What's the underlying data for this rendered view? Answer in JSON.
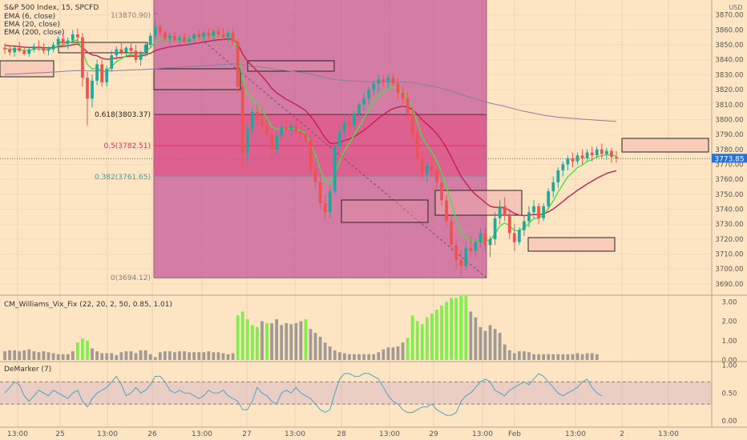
{
  "header": {
    "title": "S&P 500 Index, 15, SPCFD",
    "ema_labels": [
      "EMA (6, close)",
      "EMA (20, close)",
      "EMA (200, close)"
    ]
  },
  "colors": {
    "background": "#fde5c3",
    "fib_zone": "#c2559a",
    "fib_band": "#e64a80",
    "up": "#26a69a",
    "down": "#ef5350",
    "ema6": "#3ee63e",
    "ema20": "#c3204f",
    "ema200": "#8a7da3",
    "vix_high": "#7ef04a",
    "vix_normal": "#a09a94",
    "demarker": "#4fa3c7",
    "price_badge": "#2b6fd6"
  },
  "chart_data": [
    {
      "type": "candlestick",
      "name": "price",
      "title": "S&P 500 Index, 15, SPCFD",
      "ylabel": "USD",
      "ylim": [
        3683,
        3880
      ],
      "yticks": [
        3690,
        3700,
        3710,
        3720,
        3730,
        3740,
        3750,
        3760,
        3770,
        3780,
        3790,
        3800,
        3810,
        3820,
        3830,
        3840,
        3850,
        3860,
        3870
      ],
      "x_ticks": [
        "13:00",
        "25",
        "13:00",
        "26",
        "13:00",
        "27",
        "13:00",
        "28",
        "13:00",
        "29",
        "13:00",
        "Feb",
        "13:00",
        "2",
        "13:00"
      ],
      "last_price": "3773.85",
      "series_names": [
        "EMA (6, close)",
        "EMA (20, close)",
        "EMA (200, close)"
      ],
      "fibonacci": {
        "top": {
          "label": "1(3870.90)",
          "value": 3870.9
        },
        "levels": [
          {
            "label": "0.618(3803.37)",
            "value": 3803.37
          },
          {
            "label": "0.5(3782.51)",
            "value": 3782.51
          },
          {
            "label": "0.382(3761.65)",
            "value": 3761.65
          }
        ],
        "bottom": {
          "label": "0(3694.12)",
          "value": 3694.12
        }
      },
      "candles": [
        {
          "o": 3848,
          "h": 3851,
          "l": 3844,
          "c": 3847
        },
        {
          "o": 3847,
          "h": 3850,
          "l": 3843,
          "c": 3845
        },
        {
          "o": 3845,
          "h": 3849,
          "l": 3842,
          "c": 3848
        },
        {
          "o": 3848,
          "h": 3852,
          "l": 3845,
          "c": 3846
        },
        {
          "o": 3846,
          "h": 3849,
          "l": 3843,
          "c": 3844
        },
        {
          "o": 3844,
          "h": 3848,
          "l": 3842,
          "c": 3847
        },
        {
          "o": 3847,
          "h": 3851,
          "l": 3845,
          "c": 3849
        },
        {
          "o": 3849,
          "h": 3853,
          "l": 3846,
          "c": 3848
        },
        {
          "o": 3848,
          "h": 3851,
          "l": 3844,
          "c": 3846
        },
        {
          "o": 3846,
          "h": 3849,
          "l": 3843,
          "c": 3847
        },
        {
          "o": 3847,
          "h": 3852,
          "l": 3845,
          "c": 3850
        },
        {
          "o": 3850,
          "h": 3856,
          "l": 3848,
          "c": 3854
        },
        {
          "o": 3854,
          "h": 3858,
          "l": 3849,
          "c": 3851
        },
        {
          "o": 3851,
          "h": 3855,
          "l": 3847,
          "c": 3853
        },
        {
          "o": 3853,
          "h": 3860,
          "l": 3851,
          "c": 3857
        },
        {
          "o": 3857,
          "h": 3861,
          "l": 3852,
          "c": 3855
        },
        {
          "o": 3855,
          "h": 3858,
          "l": 3822,
          "c": 3828
        },
        {
          "o": 3828,
          "h": 3832,
          "l": 3796,
          "c": 3814
        },
        {
          "o": 3814,
          "h": 3830,
          "l": 3808,
          "c": 3826
        },
        {
          "o": 3826,
          "h": 3840,
          "l": 3823,
          "c": 3837
        },
        {
          "o": 3837,
          "h": 3840,
          "l": 3822,
          "c": 3825
        },
        {
          "o": 3825,
          "h": 3836,
          "l": 3822,
          "c": 3834
        },
        {
          "o": 3834,
          "h": 3846,
          "l": 3832,
          "c": 3843
        },
        {
          "o": 3843,
          "h": 3849,
          "l": 3840,
          "c": 3847
        },
        {
          "o": 3847,
          "h": 3851,
          "l": 3843,
          "c": 3845
        },
        {
          "o": 3845,
          "h": 3849,
          "l": 3842,
          "c": 3848
        },
        {
          "o": 3848,
          "h": 3852,
          "l": 3844,
          "c": 3846
        },
        {
          "o": 3846,
          "h": 3850,
          "l": 3838,
          "c": 3840
        },
        {
          "o": 3840,
          "h": 3846,
          "l": 3836,
          "c": 3844
        },
        {
          "o": 3844,
          "h": 3852,
          "l": 3842,
          "c": 3850
        },
        {
          "o": 3850,
          "h": 3858,
          "l": 3848,
          "c": 3856
        },
        {
          "o": 3856,
          "h": 3866,
          "l": 3854,
          "c": 3862
        },
        {
          "o": 3862,
          "h": 3864,
          "l": 3856,
          "c": 3858
        },
        {
          "o": 3858,
          "h": 3860,
          "l": 3852,
          "c": 3854
        },
        {
          "o": 3854,
          "h": 3858,
          "l": 3850,
          "c": 3856
        },
        {
          "o": 3856,
          "h": 3859,
          "l": 3852,
          "c": 3853
        },
        {
          "o": 3853,
          "h": 3857,
          "l": 3850,
          "c": 3855
        },
        {
          "o": 3855,
          "h": 3858,
          "l": 3851,
          "c": 3852
        },
        {
          "o": 3852,
          "h": 3856,
          "l": 3849,
          "c": 3854
        },
        {
          "o": 3854,
          "h": 3858,
          "l": 3851,
          "c": 3857
        },
        {
          "o": 3857,
          "h": 3860,
          "l": 3853,
          "c": 3855
        },
        {
          "o": 3855,
          "h": 3859,
          "l": 3852,
          "c": 3858
        },
        {
          "o": 3858,
          "h": 3861,
          "l": 3854,
          "c": 3856
        },
        {
          "o": 3856,
          "h": 3860,
          "l": 3853,
          "c": 3859
        },
        {
          "o": 3859,
          "h": 3862,
          "l": 3855,
          "c": 3857
        },
        {
          "o": 3857,
          "h": 3861,
          "l": 3853,
          "c": 3855
        },
        {
          "o": 3855,
          "h": 3860,
          "l": 3852,
          "c": 3858
        },
        {
          "o": 3858,
          "h": 3861,
          "l": 3850,
          "c": 3852
        },
        {
          "o": 3852,
          "h": 3854,
          "l": 3818,
          "c": 3822
        },
        {
          "o": 3822,
          "h": 3826,
          "l": 3768,
          "c": 3778
        },
        {
          "o": 3778,
          "h": 3798,
          "l": 3772,
          "c": 3794
        },
        {
          "o": 3794,
          "h": 3808,
          "l": 3790,
          "c": 3805
        },
        {
          "o": 3805,
          "h": 3810,
          "l": 3796,
          "c": 3800
        },
        {
          "o": 3800,
          "h": 3808,
          "l": 3792,
          "c": 3796
        },
        {
          "o": 3796,
          "h": 3800,
          "l": 3786,
          "c": 3790
        },
        {
          "o": 3790,
          "h": 3794,
          "l": 3774,
          "c": 3780
        },
        {
          "o": 3780,
          "h": 3792,
          "l": 3776,
          "c": 3789
        },
        {
          "o": 3789,
          "h": 3798,
          "l": 3786,
          "c": 3795
        },
        {
          "o": 3795,
          "h": 3800,
          "l": 3790,
          "c": 3793
        },
        {
          "o": 3793,
          "h": 3798,
          "l": 3788,
          "c": 3796
        },
        {
          "o": 3796,
          "h": 3800,
          "l": 3790,
          "c": 3792
        },
        {
          "o": 3792,
          "h": 3796,
          "l": 3786,
          "c": 3790
        },
        {
          "o": 3790,
          "h": 3794,
          "l": 3782,
          "c": 3786
        },
        {
          "o": 3786,
          "h": 3790,
          "l": 3762,
          "c": 3766
        },
        {
          "o": 3766,
          "h": 3772,
          "l": 3754,
          "c": 3758
        },
        {
          "o": 3758,
          "h": 3762,
          "l": 3740,
          "c": 3744
        },
        {
          "o": 3744,
          "h": 3750,
          "l": 3732,
          "c": 3738
        },
        {
          "o": 3738,
          "h": 3756,
          "l": 3734,
          "c": 3752
        },
        {
          "o": 3752,
          "h": 3786,
          "l": 3750,
          "c": 3782
        },
        {
          "o": 3782,
          "h": 3796,
          "l": 3778,
          "c": 3792
        },
        {
          "o": 3792,
          "h": 3804,
          "l": 3786,
          "c": 3798
        },
        {
          "o": 3798,
          "h": 3804,
          "l": 3790,
          "c": 3796
        },
        {
          "o": 3796,
          "h": 3806,
          "l": 3794,
          "c": 3804
        },
        {
          "o": 3804,
          "h": 3812,
          "l": 3800,
          "c": 3810
        },
        {
          "o": 3810,
          "h": 3818,
          "l": 3806,
          "c": 3814
        },
        {
          "o": 3814,
          "h": 3822,
          "l": 3810,
          "c": 3820
        },
        {
          "o": 3820,
          "h": 3826,
          "l": 3816,
          "c": 3824
        },
        {
          "o": 3824,
          "h": 3830,
          "l": 3818,
          "c": 3827
        },
        {
          "o": 3827,
          "h": 3830,
          "l": 3822,
          "c": 3825
        },
        {
          "o": 3825,
          "h": 3830,
          "l": 3821,
          "c": 3828
        },
        {
          "o": 3828,
          "h": 3831,
          "l": 3822,
          "c": 3824
        },
        {
          "o": 3824,
          "h": 3828,
          "l": 3814,
          "c": 3818
        },
        {
          "o": 3818,
          "h": 3822,
          "l": 3810,
          "c": 3814
        },
        {
          "o": 3814,
          "h": 3818,
          "l": 3800,
          "c": 3804
        },
        {
          "o": 3804,
          "h": 3808,
          "l": 3786,
          "c": 3790
        },
        {
          "o": 3790,
          "h": 3794,
          "l": 3770,
          "c": 3774
        },
        {
          "o": 3774,
          "h": 3778,
          "l": 3760,
          "c": 3764
        },
        {
          "o": 3764,
          "h": 3772,
          "l": 3758,
          "c": 3769
        },
        {
          "o": 3769,
          "h": 3774,
          "l": 3762,
          "c": 3766
        },
        {
          "o": 3766,
          "h": 3770,
          "l": 3754,
          "c": 3758
        },
        {
          "o": 3758,
          "h": 3762,
          "l": 3742,
          "c": 3746
        },
        {
          "o": 3746,
          "h": 3750,
          "l": 3728,
          "c": 3732
        },
        {
          "o": 3732,
          "h": 3736,
          "l": 3712,
          "c": 3716
        },
        {
          "o": 3716,
          "h": 3720,
          "l": 3700,
          "c": 3706
        },
        {
          "o": 3706,
          "h": 3712,
          "l": 3694,
          "c": 3702
        },
        {
          "o": 3702,
          "h": 3718,
          "l": 3699,
          "c": 3714
        },
        {
          "o": 3714,
          "h": 3722,
          "l": 3708,
          "c": 3712
        },
        {
          "o": 3712,
          "h": 3720,
          "l": 3708,
          "c": 3718
        },
        {
          "o": 3718,
          "h": 3728,
          "l": 3714,
          "c": 3724
        },
        {
          "o": 3724,
          "h": 3728,
          "l": 3712,
          "c": 3716
        },
        {
          "o": 3716,
          "h": 3722,
          "l": 3708,
          "c": 3720
        },
        {
          "o": 3720,
          "h": 3738,
          "l": 3716,
          "c": 3734
        },
        {
          "o": 3734,
          "h": 3746,
          "l": 3730,
          "c": 3742
        },
        {
          "o": 3742,
          "h": 3748,
          "l": 3732,
          "c": 3736
        },
        {
          "o": 3736,
          "h": 3740,
          "l": 3720,
          "c": 3724
        },
        {
          "o": 3724,
          "h": 3730,
          "l": 3712,
          "c": 3718
        },
        {
          "o": 3718,
          "h": 3728,
          "l": 3716,
          "c": 3726
        },
        {
          "o": 3726,
          "h": 3736,
          "l": 3722,
          "c": 3732
        },
        {
          "o": 3732,
          "h": 3742,
          "l": 3728,
          "c": 3738
        },
        {
          "o": 3738,
          "h": 3746,
          "l": 3734,
          "c": 3742
        },
        {
          "o": 3742,
          "h": 3744,
          "l": 3730,
          "c": 3734
        },
        {
          "o": 3734,
          "h": 3744,
          "l": 3732,
          "c": 3742
        },
        {
          "o": 3742,
          "h": 3754,
          "l": 3740,
          "c": 3752
        },
        {
          "o": 3752,
          "h": 3762,
          "l": 3748,
          "c": 3758
        },
        {
          "o": 3758,
          "h": 3768,
          "l": 3754,
          "c": 3766
        },
        {
          "o": 3766,
          "h": 3772,
          "l": 3762,
          "c": 3770
        },
        {
          "o": 3770,
          "h": 3776,
          "l": 3766,
          "c": 3774
        },
        {
          "o": 3774,
          "h": 3778,
          "l": 3768,
          "c": 3772
        },
        {
          "o": 3772,
          "h": 3778,
          "l": 3770,
          "c": 3776
        },
        {
          "o": 3776,
          "h": 3780,
          "l": 3770,
          "c": 3774
        },
        {
          "o": 3774,
          "h": 3780,
          "l": 3772,
          "c": 3778
        },
        {
          "o": 3778,
          "h": 3782,
          "l": 3772,
          "c": 3776
        },
        {
          "o": 3776,
          "h": 3782,
          "l": 3774,
          "c": 3780
        },
        {
          "o": 3780,
          "h": 3784,
          "l": 3774,
          "c": 3777
        },
        {
          "o": 3777,
          "h": 3781,
          "l": 3773,
          "c": 3779
        },
        {
          "o": 3779,
          "h": 3781,
          "l": 3771,
          "c": 3775
        },
        {
          "o": 3775,
          "h": 3779,
          "l": 3771,
          "c": 3774
        }
      ]
    },
    {
      "type": "bar",
      "name": "CM_Williams_Vix_Fix",
      "title": "CM_Williams_Vix_Fix (22, 20, 2, 50, 0.85, 1.01)",
      "ylim": [
        0,
        3.3
      ],
      "yticks": [
        0,
        1,
        2,
        3
      ],
      "ytick_labels": [
        "0.00",
        "1.00",
        "2.00",
        "3.00"
      ],
      "highlight_ranges": [
        [
          15,
          17
        ],
        [
          48,
          52
        ],
        [
          54,
          54
        ],
        [
          62,
          62
        ],
        [
          83,
          95
        ]
      ],
      "values": [
        0.45,
        0.5,
        0.5,
        0.45,
        0.5,
        0.55,
        0.45,
        0.4,
        0.45,
        0.4,
        0.35,
        0.3,
        0.3,
        0.3,
        0.45,
        0.9,
        1.1,
        1.0,
        0.6,
        0.45,
        0.35,
        0.35,
        0.35,
        0.25,
        0.4,
        0.45,
        0.45,
        0.35,
        0.5,
        0.5,
        0.3,
        0.15,
        0.4,
        0.45,
        0.45,
        0.4,
        0.45,
        0.45,
        0.4,
        0.4,
        0.4,
        0.4,
        0.45,
        0.4,
        0.4,
        0.35,
        0.3,
        0.35,
        2.3,
        2.5,
        2.1,
        1.8,
        1.7,
        2.0,
        1.9,
        1.9,
        2.1,
        1.8,
        1.9,
        1.85,
        1.9,
        2.0,
        2.1,
        1.6,
        1.4,
        1.2,
        0.9,
        0.7,
        0.5,
        0.4,
        0.35,
        0.3,
        0.3,
        0.3,
        0.3,
        0.3,
        0.3,
        0.4,
        0.55,
        0.65,
        0.65,
        0.7,
        0.9,
        1.15,
        2.3,
        2.0,
        1.85,
        2.2,
        2.4,
        2.6,
        2.8,
        3.0,
        3.2,
        3.2,
        3.3,
        3.3,
        2.5,
        2.2,
        1.7,
        1.5,
        1.8,
        1.6,
        1.4,
        0.8,
        0.5,
        0.35,
        0.45,
        0.45,
        0.4,
        0.3,
        0.3,
        0.3,
        0.3,
        0.3,
        0.3,
        0.3,
        0.3,
        0.3,
        0.35,
        0.3,
        0.35,
        0.35,
        0.3
      ]
    },
    {
      "type": "line",
      "name": "DeMarker",
      "title": "DeMarker (7)",
      "ylim": [
        -0.1,
        1.05
      ],
      "yticks": [
        0,
        0.5,
        1.0
      ],
      "ytick_labels": [
        "0.00",
        "0.50",
        "1.00"
      ],
      "band": [
        0.3,
        0.7
      ],
      "values": [
        0.5,
        0.6,
        0.7,
        0.65,
        0.45,
        0.35,
        0.45,
        0.55,
        0.5,
        0.45,
        0.55,
        0.5,
        0.45,
        0.4,
        0.5,
        0.55,
        0.35,
        0.25,
        0.4,
        0.5,
        0.55,
        0.6,
        0.7,
        0.8,
        0.65,
        0.45,
        0.5,
        0.6,
        0.5,
        0.55,
        0.65,
        0.8,
        0.8,
        0.7,
        0.55,
        0.5,
        0.55,
        0.5,
        0.5,
        0.45,
        0.4,
        0.45,
        0.55,
        0.5,
        0.5,
        0.55,
        0.45,
        0.4,
        0.35,
        0.2,
        0.2,
        0.35,
        0.6,
        0.5,
        0.45,
        0.35,
        0.3,
        0.5,
        0.55,
        0.5,
        0.6,
        0.5,
        0.45,
        0.4,
        0.3,
        0.2,
        0.15,
        0.2,
        0.5,
        0.75,
        0.85,
        0.85,
        0.8,
        0.8,
        0.85,
        0.85,
        0.8,
        0.75,
        0.6,
        0.45,
        0.35,
        0.3,
        0.2,
        0.15,
        0.15,
        0.2,
        0.25,
        0.25,
        0.3,
        0.2,
        0.15,
        0.1,
        0.1,
        0.15,
        0.35,
        0.45,
        0.5,
        0.6,
        0.7,
        0.75,
        0.7,
        0.55,
        0.5,
        0.45,
        0.55,
        0.6,
        0.65,
        0.7,
        0.65,
        0.75,
        0.85,
        0.8,
        0.7,
        0.6,
        0.5,
        0.45,
        0.5,
        0.55,
        0.6,
        0.7,
        0.75,
        0.6,
        0.5,
        0.45
      ]
    }
  ]
}
